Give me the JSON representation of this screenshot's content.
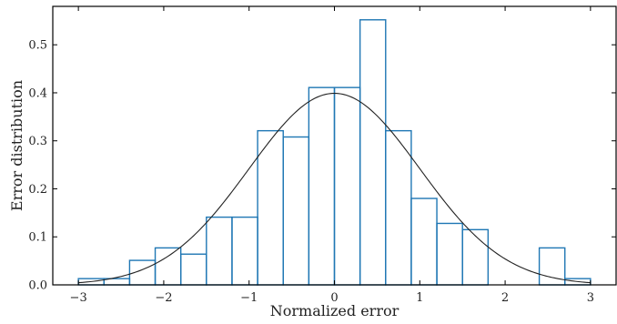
{
  "chart_data": {
    "type": "histogram",
    "xlabel": "Normalized error",
    "ylabel": "Error distribution",
    "xlim": [
      -3.3,
      3.3
    ],
    "ylim": [
      0,
      0.58
    ],
    "x_ticks": [
      -3,
      -2,
      -1,
      0,
      1,
      2,
      3
    ],
    "x_tick_labels": [
      "−3",
      "−2",
      "−1",
      "0",
      "1",
      "2",
      "3"
    ],
    "y_ticks": [
      0.0,
      0.1,
      0.2,
      0.3,
      0.4,
      0.5
    ],
    "y_tick_labels": [
      "0.0",
      "0.1",
      "0.2",
      "0.3",
      "0.4",
      "0.5"
    ],
    "grid": false,
    "histogram": {
      "color": "#1f77b4",
      "bin_edges": [
        -3.0,
        -2.7,
        -2.4,
        -2.1,
        -1.8,
        -1.5,
        -1.2,
        -0.9,
        -0.6,
        -0.3,
        0.0,
        0.3,
        0.6,
        0.9,
        1.2,
        1.5,
        1.8,
        2.1,
        2.4,
        2.7,
        3.0
      ],
      "values": [
        0.013,
        0.013,
        0.051,
        0.077,
        0.064,
        0.141,
        0.141,
        0.321,
        0.308,
        0.411,
        0.411,
        0.552,
        0.321,
        0.18,
        0.128,
        0.115,
        0.0,
        0.0,
        0.077,
        0.013
      ]
    },
    "curve": {
      "color": "#222222",
      "function": "standard normal density",
      "mean": 0,
      "std": 1
    }
  }
}
